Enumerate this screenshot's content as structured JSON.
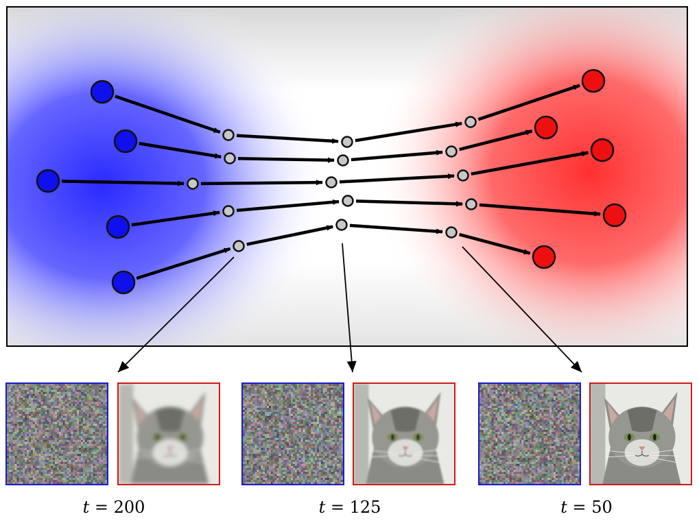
{
  "colors": {
    "source": "#1010ee",
    "target": "#ee1010",
    "intermediate": "#c8c8c8",
    "noise_border": "#1a1acc",
    "image_border": "#cc1a1a"
  },
  "panels": [
    {
      "t_label": "t",
      "equals": "=",
      "t_value": "200"
    },
    {
      "t_label": "t",
      "equals": "=",
      "t_value": "125"
    },
    {
      "t_label": "t",
      "equals": "=",
      "t_value": "50"
    }
  ]
}
